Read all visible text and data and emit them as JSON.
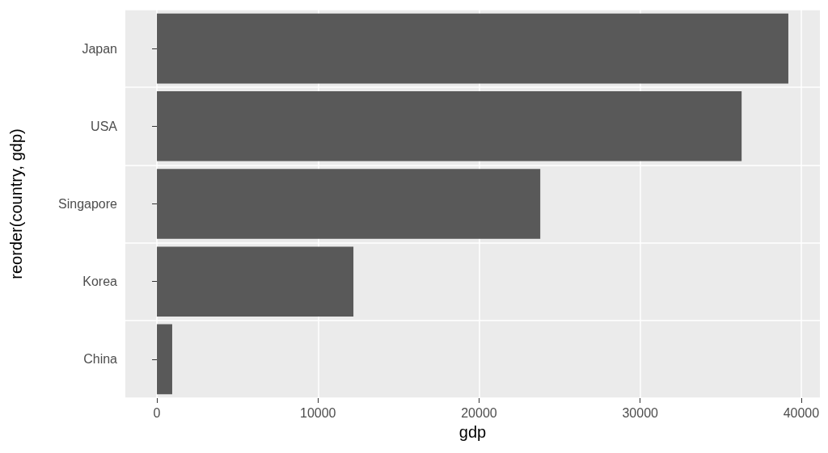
{
  "chart_data": {
    "type": "bar",
    "orientation": "horizontal",
    "xlabel": "gdp",
    "ylabel": "reorder(country, gdp)",
    "categories": [
      "Japan",
      "USA",
      "Singapore",
      "Korea",
      "China"
    ],
    "values": [
      39200,
      36300,
      23800,
      12200,
      950
    ],
    "color": "#595959",
    "xlim": [
      -1960,
      41160
    ],
    "xticks": [
      0,
      10000,
      20000,
      30000,
      40000
    ],
    "grid": true
  }
}
